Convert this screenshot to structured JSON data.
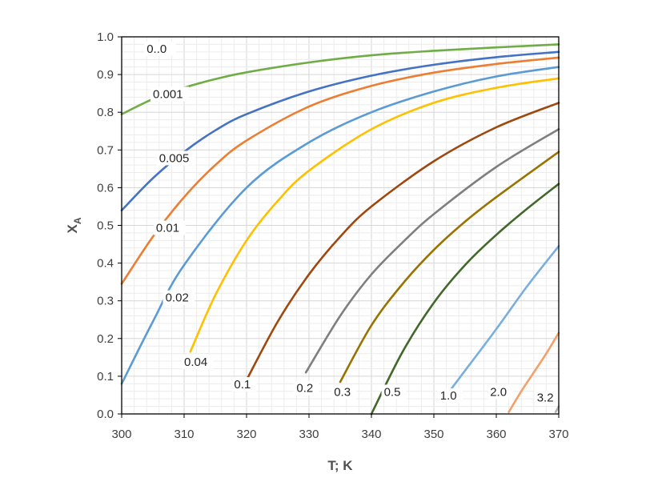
{
  "chart_data": {
    "type": "line",
    "title": "",
    "xlabel": "T; K",
    "ylabel_main": "X",
    "ylabel_sub": "A",
    "xlim": [
      300,
      370
    ],
    "ylim": [
      0,
      1
    ],
    "x_ticks": [
      "300",
      "310",
      "320",
      "330",
      "340",
      "350",
      "360",
      "370"
    ],
    "y_ticks": [
      "0.0",
      "0.1",
      "0.2",
      "0.3",
      "0.4",
      "0.5",
      "0.6",
      "0.7",
      "0.8",
      "0.9",
      "1.0"
    ],
    "grid": true,
    "legend": "none",
    "series": [
      {
        "label": "0..0",
        "color": "#70ad47",
        "label_at": [
          304,
          0.96
        ],
        "x": [
          300,
          305,
          310,
          315,
          320,
          330,
          340,
          350,
          360,
          370
        ],
        "y": [
          0.795,
          0.835,
          0.865,
          0.888,
          0.906,
          0.932,
          0.951,
          0.963,
          0.972,
          0.98
        ]
      },
      {
        "label": "0.001",
        "color": "#4472c4",
        "label_at": [
          305,
          0.84
        ],
        "x": [
          300,
          305,
          310,
          315,
          320,
          330,
          340,
          350,
          360,
          370
        ],
        "y": [
          0.54,
          0.625,
          0.695,
          0.752,
          0.795,
          0.855,
          0.897,
          0.926,
          0.946,
          0.96
        ]
      },
      {
        "label": "0.005",
        "color": "#ed7d31",
        "label_at": [
          306,
          0.67
        ],
        "x": [
          300,
          305,
          310,
          315,
          320,
          330,
          340,
          350,
          360,
          370
        ],
        "y": [
          0.345,
          0.47,
          0.575,
          0.66,
          0.725,
          0.815,
          0.87,
          0.905,
          0.928,
          0.945
        ]
      },
      {
        "label": "0.01",
        "color": "#5b9bd5",
        "label_at": [
          305.5,
          0.485
        ],
        "x": [
          300,
          305,
          310,
          320,
          330,
          340,
          350,
          360,
          370
        ],
        "y": [
          0.08,
          0.245,
          0.395,
          0.6,
          0.72,
          0.8,
          0.855,
          0.895,
          0.92
        ]
      },
      {
        "label": "0.02",
        "color": "#ffc000",
        "label_at": [
          307,
          0.3
        ],
        "x": [
          311,
          315,
          320,
          325,
          330,
          340,
          350,
          360,
          370
        ],
        "y": [
          0.165,
          0.315,
          0.46,
          0.565,
          0.645,
          0.755,
          0.825,
          0.865,
          0.89
        ]
      },
      {
        "label": "0.04",
        "color": "#9e480e",
        "label_at": [
          310,
          0.13
        ],
        "x": [
          320,
          325,
          330,
          335,
          340,
          350,
          360,
          370
        ],
        "y": [
          0.09,
          0.245,
          0.37,
          0.47,
          0.55,
          0.67,
          0.76,
          0.825
        ]
      },
      {
        "label": "0.1",
        "color": "#7f7f7f",
        "label_at": [
          318,
          0.07
        ],
        "x": [
          329.5,
          335,
          340,
          345,
          350,
          360,
          370
        ],
        "y": [
          0.11,
          0.26,
          0.37,
          0.455,
          0.53,
          0.655,
          0.755
        ]
      },
      {
        "label": "0.2",
        "color": "#997300",
        "label_at": [
          328,
          0.06
        ],
        "x": [
          335,
          340,
          345,
          350,
          355,
          360,
          370
        ],
        "y": [
          0.085,
          0.235,
          0.345,
          0.435,
          0.51,
          0.575,
          0.695
        ]
      },
      {
        "label": "0.3",
        "color": "#43682b",
        "label_at": [
          334,
          0.05
        ],
        "x": [
          340,
          345,
          350,
          355,
          360,
          365,
          370
        ],
        "y": [
          0.0,
          0.165,
          0.295,
          0.395,
          0.475,
          0.545,
          0.61
        ]
      },
      {
        "label": "0.5",
        "color": "#79aee0",
        "label_at": [
          342,
          0.05
        ],
        "x": [
          352.5,
          355,
          360,
          365,
          370
        ],
        "y": [
          0.06,
          0.115,
          0.225,
          0.34,
          0.445
        ]
      },
      {
        "label": "1.0",
        "color": "#f4a06a",
        "label_at": [
          351,
          0.04
        ],
        "x": [
          362,
          364,
          366,
          368,
          370
        ],
        "y": [
          0.005,
          0.06,
          0.11,
          0.16,
          0.215
        ]
      },
      {
        "label": "2.0",
        "color": "#b4b4b4",
        "label_at": [
          359,
          0.05
        ],
        "x": [
          369.5,
          370
        ],
        "y": [
          0.005,
          0.02
        ]
      },
      {
        "label": "3.2",
        "color": "#333333",
        "label_at": [
          366.5,
          0.035
        ],
        "x": [],
        "y": []
      }
    ]
  }
}
